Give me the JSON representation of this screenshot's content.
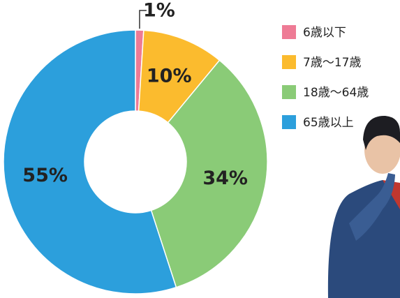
{
  "chart_data": {
    "type": "donut",
    "categories": [
      "6歳以下",
      "7歳〜17歳",
      "18歳〜64歳",
      "65歳以上"
    ],
    "values": [
      1,
      10,
      34,
      55
    ],
    "value_labels": [
      "1%",
      "10%",
      "34%",
      "55%"
    ],
    "colors": [
      "#ee7b95",
      "#fbbb2e",
      "#8acb77",
      "#2c9fdc"
    ],
    "legend": "top-right"
  }
}
